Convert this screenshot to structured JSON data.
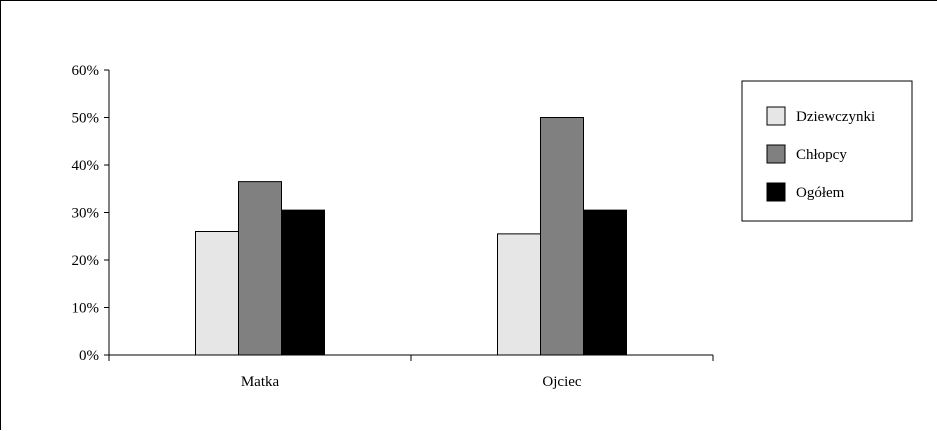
{
  "chart_data": {
    "type": "bar",
    "categories": [
      "Matka",
      "Ojciec"
    ],
    "series": [
      {
        "name": "Dziewczynki",
        "values": [
          26,
          25.5
        ],
        "color": "#e6e6e6"
      },
      {
        "name": "Chłopcy",
        "values": [
          36.5,
          50
        ],
        "color": "#808080"
      },
      {
        "name": "Ogółem",
        "values": [
          30.5,
          30.5
        ],
        "color": "#000000"
      }
    ],
    "ylim": [
      0,
      60
    ],
    "yticks": [
      0,
      10,
      20,
      30,
      40,
      50,
      60
    ],
    "ytick_labels": [
      "0%",
      "10%",
      "20%",
      "30%",
      "40%",
      "50%",
      "60%"
    ],
    "grid": false,
    "legend_position": "right"
  }
}
